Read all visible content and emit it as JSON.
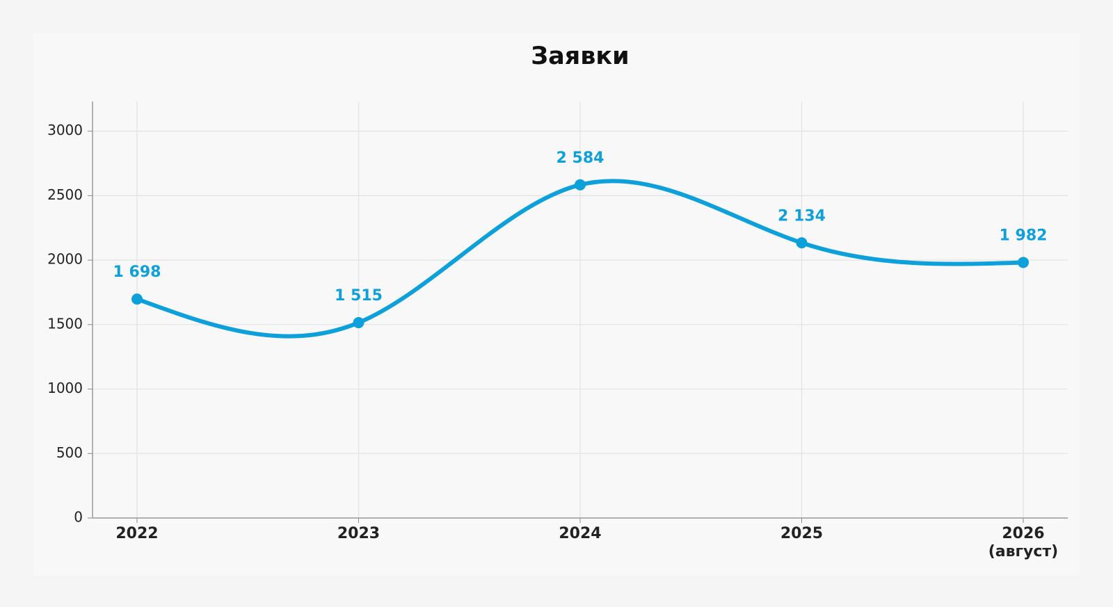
{
  "chart_data": {
    "type": "line",
    "title": "Заявки",
    "categories": [
      "2022",
      "2023",
      "2024",
      "2025",
      "2026\n(август)"
    ],
    "series": [
      {
        "name": "Заявки",
        "color": "#0ea0db",
        "values": [
          1698,
          1515,
          2584,
          2134,
          1982
        ],
        "value_labels": [
          "1 698",
          "1 515",
          "2 584",
          "2 134",
          "1 982"
        ]
      }
    ],
    "ylim": [
      0,
      3230
    ],
    "yticks": [
      0,
      500,
      1000,
      1500,
      2000,
      2500,
      3000
    ],
    "grid": true,
    "smooth": true
  }
}
